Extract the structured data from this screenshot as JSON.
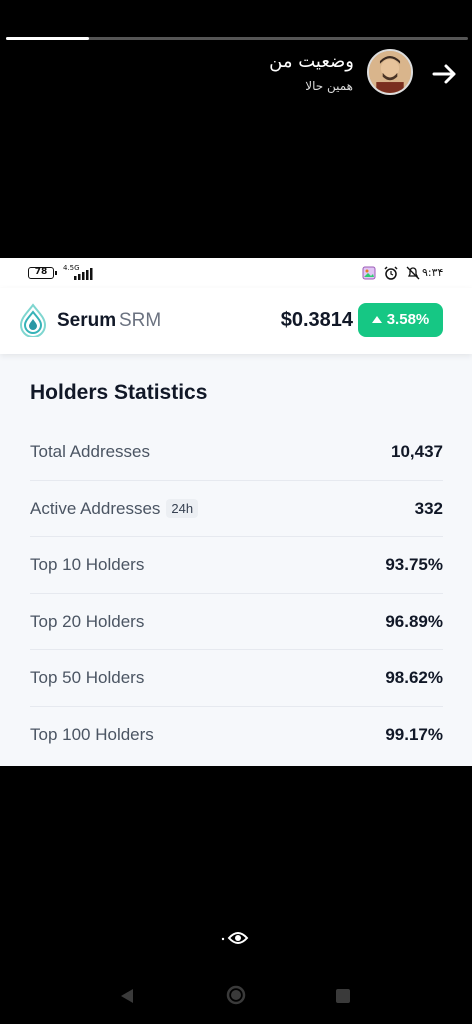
{
  "story": {
    "progress": 0.18,
    "title": "وضعیت من",
    "subtitle": "همین حالا"
  },
  "status_bar": {
    "battery": "78",
    "network": "4.5G",
    "time": "۹:۳۴"
  },
  "coin": {
    "name": "Serum",
    "symbol": "SRM",
    "price": "$0.3814",
    "change": "3.58%",
    "change_color": "#16c784"
  },
  "holders": {
    "title": "Holders Statistics",
    "rows": [
      {
        "label": "Total Addresses",
        "value": "10,437"
      },
      {
        "label": "Active Addresses",
        "tag": "24h",
        "value": "332"
      },
      {
        "label": "Top 10 Holders",
        "value": "93.75%"
      },
      {
        "label": "Top 20 Holders",
        "value": "96.89%"
      },
      {
        "label": "Top 50 Holders",
        "value": "98.62%"
      },
      {
        "label": "Top 100 Holders",
        "value": "99.17%"
      }
    ]
  },
  "icons": [
    "back-arrow-icon",
    "avatar",
    "battery-icon",
    "signal-icon",
    "gallery-icon",
    "alarm-icon",
    "bell-off-icon",
    "serum-logo-icon",
    "arrow-up-icon",
    "eye-icon",
    "nav-back-icon",
    "nav-home-icon",
    "nav-recents-icon"
  ]
}
